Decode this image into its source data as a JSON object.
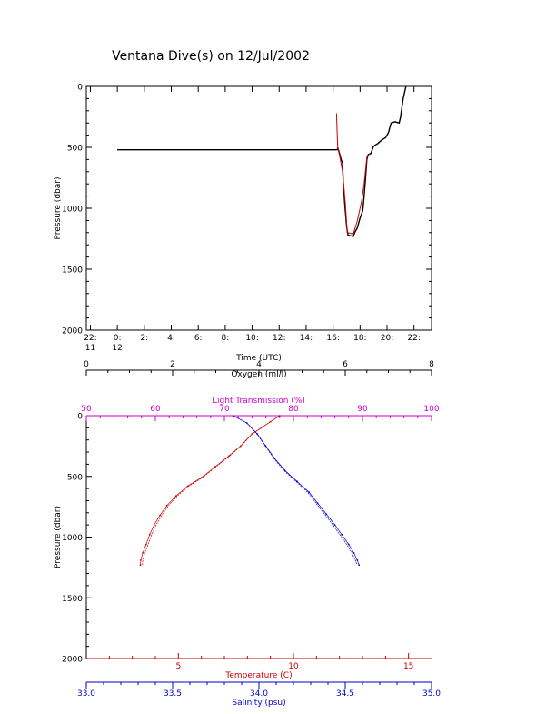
{
  "title": "Ventana Dive(s) on 12/Jul/2002",
  "colors": {
    "axis": "#000000",
    "temperature": "#cc0000",
    "salinity": "#0000cc",
    "light": "#cc00cc",
    "dive_track_red": "#cc0000"
  },
  "chart_data": [
    {
      "type": "line",
      "title": "Ventana Dive(s) on 12/Jul/2002",
      "xlabel": "Time (UTC)",
      "ylabel": "Pressure (dbar)",
      "x_ticks": [
        {
          "value": -2,
          "label": "22:",
          "sub": "11"
        },
        {
          "value": 0,
          "label": "0:",
          "sub": "12"
        },
        {
          "value": 2,
          "label": "2:",
          "sub": ""
        },
        {
          "value": 4,
          "label": "4:",
          "sub": ""
        },
        {
          "value": 6,
          "label": "6:",
          "sub": ""
        },
        {
          "value": 8,
          "label": "8:",
          "sub": ""
        },
        {
          "value": 10,
          "label": "10:",
          "sub": ""
        },
        {
          "value": 12,
          "label": "12:",
          "sub": ""
        },
        {
          "value": 14,
          "label": "14:",
          "sub": ""
        },
        {
          "value": 16,
          "label": "16:",
          "sub": ""
        },
        {
          "value": 18,
          "label": "18:",
          "sub": ""
        },
        {
          "value": 20,
          "label": "20:",
          "sub": ""
        },
        {
          "value": 22,
          "label": "22:",
          "sub": ""
        }
      ],
      "xlim": [
        -2.3,
        23.3
      ],
      "ylim": [
        2000,
        0
      ],
      "y_ticks": [
        0,
        500,
        1000,
        1500,
        2000
      ],
      "series": [
        {
          "color": "black",
          "points": [
            [
              0,
              520
            ],
            [
              16.3,
              520
            ],
            [
              16.35,
              505
            ],
            [
              16.45,
              540
            ],
            [
              16.6,
              600
            ],
            [
              16.7,
              630
            ],
            [
              16.75,
              780
            ],
            [
              16.85,
              950
            ],
            [
              17.0,
              1150
            ],
            [
              17.1,
              1220
            ],
            [
              17.25,
              1225
            ],
            [
              17.5,
              1230
            ],
            [
              17.6,
              1200
            ],
            [
              17.8,
              1160
            ],
            [
              18.0,
              1080
            ],
            [
              18.2,
              1020
            ],
            [
              18.3,
              900
            ],
            [
              18.4,
              760
            ],
            [
              18.5,
              600
            ],
            [
              18.6,
              560
            ],
            [
              18.8,
              550
            ],
            [
              19.0,
              490
            ],
            [
              19.3,
              470
            ],
            [
              19.6,
              440
            ],
            [
              19.9,
              420
            ],
            [
              20.1,
              380
            ],
            [
              20.3,
              300
            ],
            [
              20.6,
              290
            ],
            [
              20.9,
              300
            ],
            [
              21.0,
              250
            ],
            [
              21.2,
              100
            ],
            [
              21.4,
              0
            ]
          ]
        },
        {
          "color": "red",
          "points": [
            [
              16.25,
              220
            ],
            [
              16.3,
              380
            ],
            [
              16.35,
              505
            ],
            [
              16.5,
              580
            ],
            [
              16.7,
              700
            ],
            [
              16.9,
              950
            ],
            [
              17.05,
              1200
            ],
            [
              17.5,
              1210
            ],
            [
              17.8,
              1100
            ],
            [
              18.1,
              950
            ],
            [
              18.3,
              800
            ],
            [
              18.5,
              580
            ],
            [
              18.7,
              555
            ]
          ]
        }
      ]
    },
    {
      "type": "line",
      "ylabel": "Pressure (dbar)",
      "ylim": [
        2000,
        0
      ],
      "y_ticks": [
        0,
        500,
        1000,
        1500,
        2000
      ],
      "axes": {
        "oxygen": {
          "label": "Oxygen (ml/l)",
          "range": [
            0,
            8
          ],
          "ticks": [
            0,
            2,
            4,
            6,
            8
          ]
        },
        "light_transmission": {
          "label": "Light Transmission (%)",
          "range": [
            50,
            100
          ],
          "ticks": [
            50,
            60,
            70,
            80,
            90,
            100
          ]
        },
        "temperature": {
          "label": "Temperature (C)",
          "range": [
            1.0,
            16.0
          ],
          "ticks": [
            5,
            10,
            15
          ]
        },
        "salinity": {
          "label": "Salinity (psu)",
          "range": [
            33.0,
            35.0
          ],
          "ticks": [
            "33.0",
            "33.5",
            "34.0",
            "34.5",
            "35.0"
          ]
        }
      },
      "series": [
        {
          "name": "Temperature (C)",
          "axis": "temperature",
          "points": [
            [
              9.4,
              0
            ],
            [
              9.0,
              50
            ],
            [
              8.6,
              100
            ],
            [
              8.2,
              150
            ],
            [
              7.7,
              250
            ],
            [
              7.2,
              330
            ],
            [
              6.6,
              420
            ],
            [
              6.0,
              510
            ],
            [
              5.4,
              580
            ],
            [
              4.9,
              660
            ],
            [
              4.5,
              740
            ],
            [
              4.2,
              820
            ],
            [
              3.95,
              900
            ],
            [
              3.75,
              980
            ],
            [
              3.6,
              1060
            ],
            [
              3.45,
              1130
            ],
            [
              3.37,
              1190
            ],
            [
              3.35,
              1230
            ]
          ]
        },
        {
          "name": "Salinity (psu)",
          "axis": "salinity",
          "points": [
            [
              33.85,
              0
            ],
            [
              33.93,
              60
            ],
            [
              33.99,
              150
            ],
            [
              34.04,
              250
            ],
            [
              34.09,
              350
            ],
            [
              34.15,
              450
            ],
            [
              34.22,
              540
            ],
            [
              34.29,
              630
            ],
            [
              34.34,
              720
            ],
            [
              34.39,
              810
            ],
            [
              34.44,
              900
            ],
            [
              34.48,
              980
            ],
            [
              34.52,
              1060
            ],
            [
              34.55,
              1130
            ],
            [
              34.57,
              1190
            ],
            [
              34.58,
              1230
            ]
          ]
        }
      ]
    }
  ]
}
